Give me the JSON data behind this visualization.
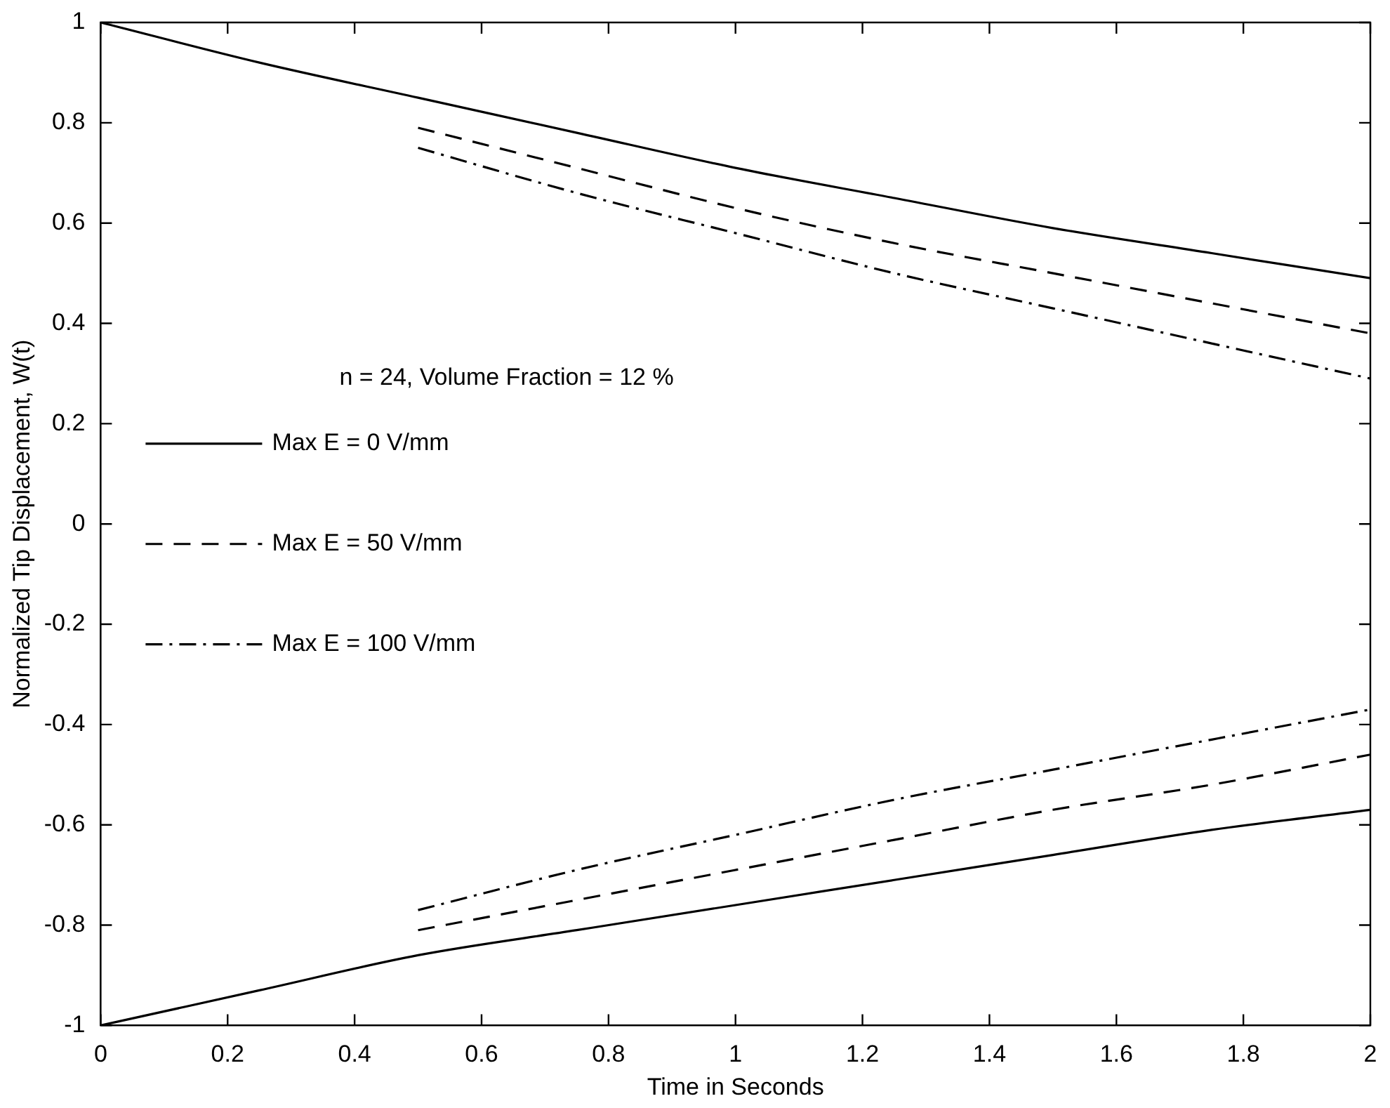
{
  "chart_data": {
    "type": "line",
    "xlabel": "Time in Seconds",
    "ylabel": "Normalized Tip Displacement, W(t)",
    "xlim": [
      0,
      2
    ],
    "xticks": [
      0,
      0.2,
      0.4,
      0.6,
      0.8,
      1,
      1.2,
      1.4,
      1.6,
      1.8,
      2
    ],
    "ylim": [
      -1,
      1
    ],
    "yticks": [
      -1,
      -0.8,
      -0.6,
      -0.4,
      -0.2,
      0,
      0.2,
      0.4,
      0.6,
      0.8,
      1
    ],
    "grid": false,
    "legend": "left",
    "marker": "none",
    "annotations": [
      "n = 24, Volume Fraction = 12 %"
    ],
    "series": [
      {
        "name": "Max E = 0 V/mm",
        "color": "#000000",
        "line_style": "solid",
        "x": [
          0,
          0.25,
          0.5,
          0.75,
          1,
          1.25,
          1.5,
          1.75,
          2
        ],
        "values": [
          1,
          0.92,
          0.85,
          0.78,
          0.71,
          0.65,
          0.59,
          0.54,
          0.49
        ]
      },
      {
        "color": "#000000",
        "line_style": "solid",
        "x": [
          0,
          0.25,
          0.5,
          0.75,
          1,
          1.25,
          1.5,
          1.75,
          2
        ],
        "values": [
          -1,
          -0.93,
          -0.86,
          -0.81,
          -0.76,
          -0.71,
          -0.66,
          -0.61,
          -0.57
        ]
      },
      {
        "name": "Max E = 50 V/mm",
        "color": "#000000",
        "line_style": "dashed",
        "x": [
          0.5,
          0.75,
          1,
          1.25,
          1.5,
          1.75,
          2
        ],
        "values": [
          0.79,
          0.71,
          0.63,
          0.56,
          0.5,
          0.44,
          0.38
        ]
      },
      {
        "color": "#000000",
        "line_style": "dashed",
        "x": [
          0.5,
          0.75,
          1,
          1.25,
          1.5,
          1.75,
          2
        ],
        "values": [
          -0.81,
          -0.75,
          -0.69,
          -0.63,
          -0.57,
          -0.52,
          -0.46
        ]
      },
      {
        "name": "Max E = 100 V/mm",
        "color": "#000000",
        "line_style": "dashdot",
        "x": [
          0.5,
          0.75,
          1,
          1.25,
          1.5,
          1.75,
          2
        ],
        "values": [
          0.75,
          0.66,
          0.58,
          0.5,
          0.43,
          0.36,
          0.29
        ]
      },
      {
        "color": "#000000",
        "line_style": "dashdot",
        "x": [
          0.5,
          0.75,
          1,
          1.25,
          1.5,
          1.75,
          2
        ],
        "values": [
          -0.77,
          -0.69,
          -0.62,
          -0.55,
          -0.49,
          -0.43,
          -0.37
        ]
      }
    ]
  }
}
